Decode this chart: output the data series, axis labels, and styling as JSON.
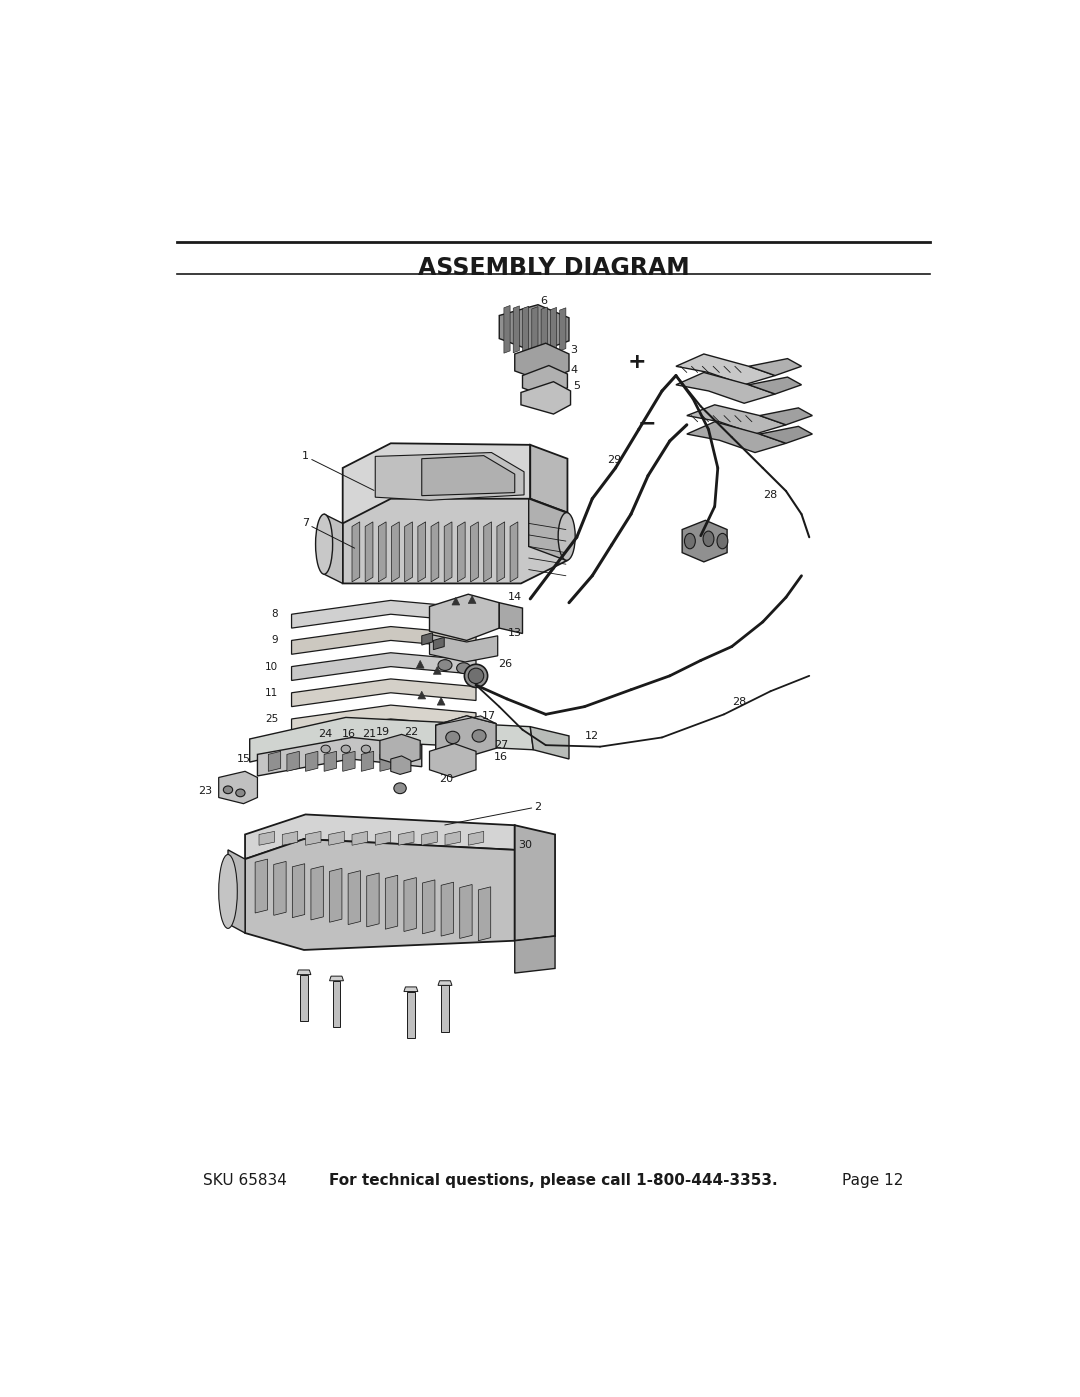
{
  "title": "ASSEMBLY DIAGRAM",
  "bg_color": "#ffffff",
  "text_color": "#1a1a1a",
  "title_fontsize": 17,
  "footer_left": "SKU 65834",
  "footer_center": "For technical questions, please call 1-800-444-3353.",
  "footer_right": "Page 12",
  "footer_fontsize": 11,
  "page_width": 10.8,
  "page_height": 13.97,
  "line_color": "#1a1a1a",
  "gray_fill": "#c8c8c8",
  "dark_gray": "#888888",
  "mid_gray": "#aaaaaa",
  "light_gray": "#e0e0e0"
}
